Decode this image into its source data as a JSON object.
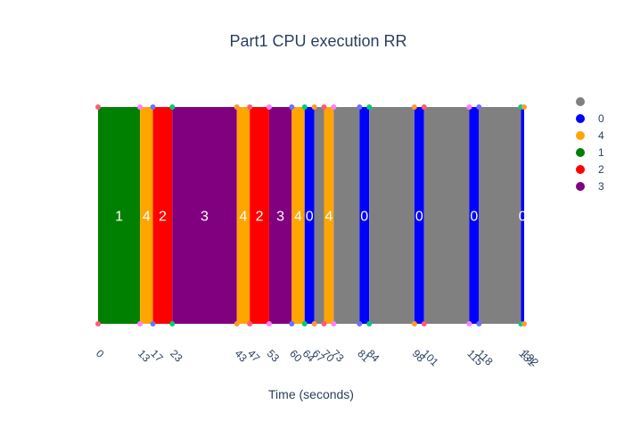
{
  "chart_data": {
    "type": "bar",
    "title": "Part1 CPU execution RR",
    "xlabel": "Time (seconds)",
    "ylabel": "",
    "xlim": [
      0,
      132
    ],
    "grid": false,
    "legend_position": "right",
    "series_colors": {
      "idle": "#808080",
      "0": "#0000ff",
      "4": "#ffa500",
      "1": "#008000",
      "2": "#ff0000",
      "3": "#800080"
    },
    "legend": [
      {
        "key": "idle",
        "label": ""
      },
      {
        "key": "0",
        "label": "0"
      },
      {
        "key": "4",
        "label": "4"
      },
      {
        "key": "1",
        "label": "1"
      },
      {
        "key": "2",
        "label": "2"
      },
      {
        "key": "3",
        "label": "3"
      }
    ],
    "segments": [
      {
        "process": "1",
        "start": 0,
        "end": 13,
        "label": "1"
      },
      {
        "process": "4",
        "start": 13,
        "end": 17,
        "label": "4"
      },
      {
        "process": "2",
        "start": 17,
        "end": 23,
        "label": "2"
      },
      {
        "process": "3",
        "start": 23,
        "end": 43,
        "label": "3"
      },
      {
        "process": "4",
        "start": 43,
        "end": 47,
        "label": "4"
      },
      {
        "process": "2",
        "start": 47,
        "end": 53,
        "label": "2"
      },
      {
        "process": "3",
        "start": 53,
        "end": 60,
        "label": "3"
      },
      {
        "process": "4",
        "start": 60,
        "end": 64,
        "label": "4"
      },
      {
        "process": "0",
        "start": 64,
        "end": 67,
        "label": "0"
      },
      {
        "process": "idle",
        "start": 67,
        "end": 70,
        "label": ""
      },
      {
        "process": "4",
        "start": 70,
        "end": 73,
        "label": "4"
      },
      {
        "process": "idle",
        "start": 73,
        "end": 81,
        "label": ""
      },
      {
        "process": "0",
        "start": 81,
        "end": 84,
        "label": "0"
      },
      {
        "process": "idle",
        "start": 84,
        "end": 98,
        "label": ""
      },
      {
        "process": "0",
        "start": 98,
        "end": 101,
        "label": "0"
      },
      {
        "process": "idle",
        "start": 101,
        "end": 115,
        "label": ""
      },
      {
        "process": "0",
        "start": 115,
        "end": 118,
        "label": "0"
      },
      {
        "process": "idle",
        "start": 118,
        "end": 131,
        "label": ""
      },
      {
        "process": "0",
        "start": 131,
        "end": 132,
        "label": "0"
      }
    ],
    "tick_labels": [
      "0",
      "13",
      "17",
      "23",
      "43",
      "47",
      "53",
      "60",
      "64",
      "67",
      "70",
      "73",
      "81",
      "84",
      "98",
      "101",
      "115",
      "118",
      "131",
      "132"
    ],
    "tick_values": [
      0,
      13,
      17,
      23,
      43,
      47,
      53,
      60,
      64,
      67,
      70,
      73,
      81,
      84,
      98,
      101,
      115,
      118,
      131,
      132
    ],
    "marker_colors": [
      "#ff5a7a",
      "#ff80ff",
      "#6f6fff",
      "#00cc77",
      "#ff9933"
    ]
  }
}
